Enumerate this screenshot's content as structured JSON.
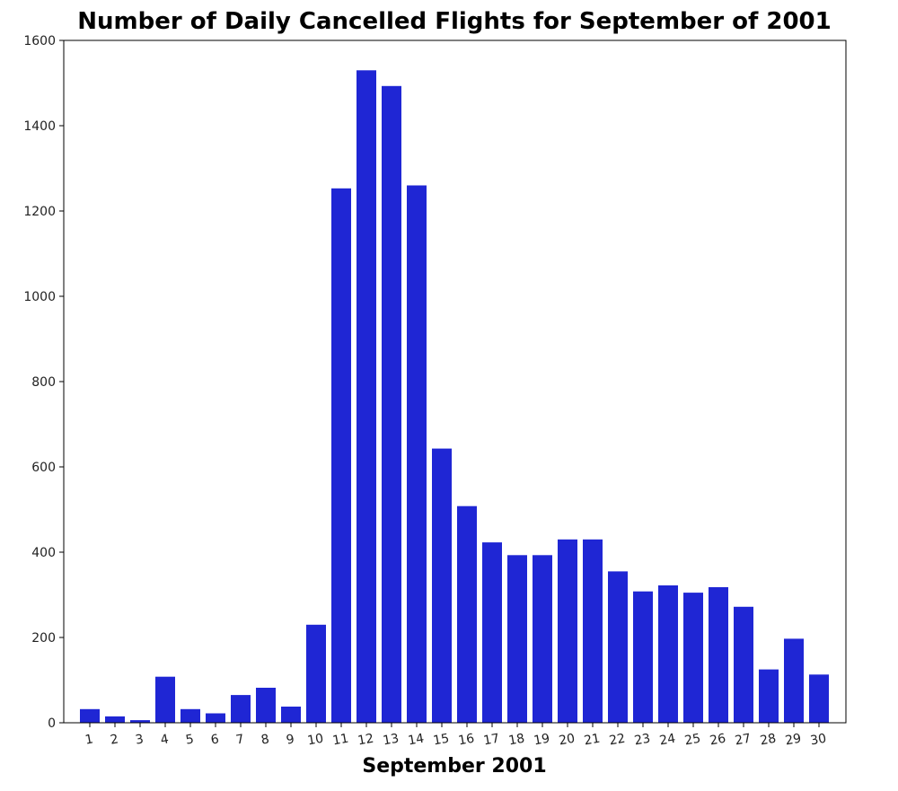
{
  "chart_data": {
    "type": "bar",
    "title": "Number of Daily Cancelled Flights for September of 2001",
    "xlabel": "September 2001",
    "ylabel": "",
    "ylim": [
      0,
      1600
    ],
    "yticks": [
      0,
      200,
      400,
      600,
      800,
      1000,
      1200,
      1400,
      1600
    ],
    "grid": false,
    "bar_color": "#1f26d4",
    "categories": [
      "1",
      "2",
      "3",
      "4",
      "5",
      "6",
      "7",
      "8",
      "9",
      "10",
      "11",
      "12",
      "13",
      "14",
      "15",
      "16",
      "17",
      "18",
      "19",
      "20",
      "21",
      "22",
      "23",
      "24",
      "25",
      "26",
      "27",
      "28",
      "29",
      "30"
    ],
    "values": [
      32,
      15,
      6,
      108,
      32,
      22,
      65,
      82,
      38,
      230,
      1253,
      1530,
      1493,
      1260,
      643,
      508,
      423,
      393,
      393,
      430,
      430,
      355,
      308,
      322,
      305,
      318,
      272,
      125,
      197,
      113
    ]
  }
}
